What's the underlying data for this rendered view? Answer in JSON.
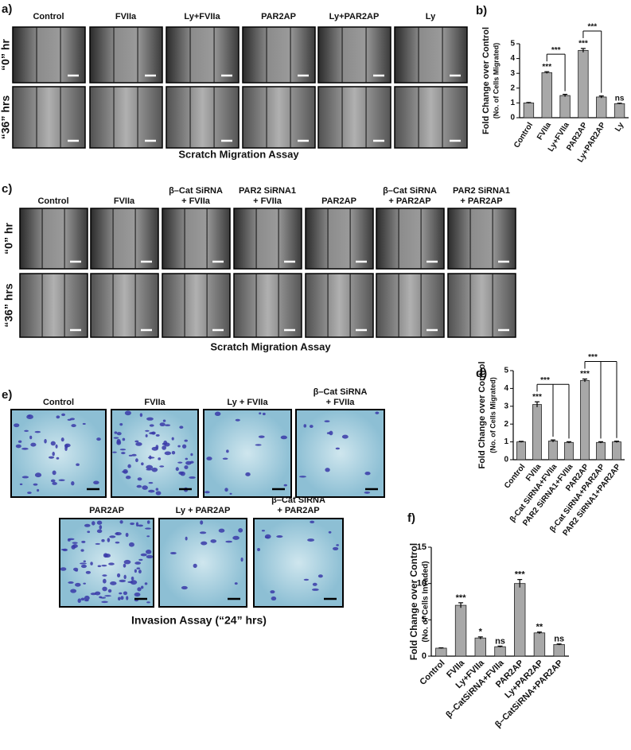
{
  "figure": {
    "panel_a": {
      "label": "a)",
      "columns": [
        "Control",
        "FVIIa",
        "Ly+FVIIa",
        "PAR2AP",
        "Ly+PAR2AP",
        "Ly"
      ],
      "rows": [
        "“0” hr",
        "“36” hrs"
      ],
      "caption": "Scratch Migration Assay"
    },
    "panel_c": {
      "label": "c)",
      "columns": [
        [
          "Control"
        ],
        [
          "FVIIa"
        ],
        [
          "β–Cat SiRNA",
          "+ FVIIa"
        ],
        [
          "PAR2 SiRNA1",
          "+ FVIIa"
        ],
        [
          "PAR2AP"
        ],
        [
          "β–Cat SiRNA",
          "+ PAR2AP"
        ],
        [
          "PAR2 SiRNA1",
          "+ PAR2AP"
        ]
      ],
      "rows": [
        "“0” hr",
        "“36” hrs"
      ],
      "caption": "Scratch Migration Assay"
    },
    "panel_e": {
      "label": "e)",
      "top": [
        [
          "Control"
        ],
        [
          "FVIIa"
        ],
        [
          "Ly + FVIIa"
        ],
        [
          "β–Cat SiRNA",
          "+ FVIIa"
        ]
      ],
      "bottom": [
        [
          "PAR2AP"
        ],
        [
          "Ly + PAR2AP"
        ],
        [
          "β–Cat SiRNA",
          "+ PAR2AP"
        ]
      ],
      "caption": "Invasion Assay (“24” hrs)"
    }
  },
  "chart_data": [
    {
      "type": "bar",
      "label": "b)",
      "ylabel": "Fold Change over Control",
      "ysublabel": "(No. of Cells Migrated)",
      "categories": [
        "Control",
        "FVIIa",
        "Ly+FVIIa",
        "PAR2AP",
        "Ly+PAR2AP",
        "Ly"
      ],
      "values": [
        1.0,
        3.05,
        1.5,
        4.55,
        1.4,
        0.95
      ],
      "errors": [
        0.03,
        0.06,
        0.08,
        0.13,
        0.07,
        0.03
      ],
      "annotations": [
        null,
        "***",
        null,
        "***",
        null,
        "ns"
      ],
      "comparisons": [
        {
          "label": "***",
          "from": 1,
          "to": [
            2
          ]
        },
        {
          "label": "***",
          "from": 3,
          "to": [
            4
          ]
        }
      ],
      "color": "#a8a8a8",
      "ylim": [
        0,
        5
      ],
      "yticks": [
        0,
        1,
        2,
        3,
        4,
        5
      ]
    },
    {
      "type": "bar",
      "label": "d)",
      "ylabel": "Fold Change over Control",
      "ysublabel": "(No. of Cells Migrated)",
      "categories": [
        "Control",
        "FVIIa",
        "β-Cat SiRNA+FVIIa",
        "PAR2 SiRNA1+FVIIa",
        "PAR2AP",
        "β-Cat SiRNA+PAR2AP",
        "PAR2 SiRNA1+PAR2AP"
      ],
      "values": [
        1.0,
        3.1,
        1.05,
        0.97,
        4.45,
        0.97,
        1.0
      ],
      "errors": [
        0.03,
        0.15,
        0.06,
        0.04,
        0.08,
        0.04,
        0.04
      ],
      "annotations": [
        null,
        "***",
        null,
        null,
        "***",
        null,
        null
      ],
      "comparisons": [
        {
          "label": "***",
          "from": 1,
          "to": [
            2,
            3
          ]
        },
        {
          "label": "***",
          "from": 4,
          "to": [
            5,
            6
          ]
        }
      ],
      "color": "#a8a8a8",
      "ylim": [
        0,
        5
      ],
      "yticks": [
        0,
        1,
        2,
        3,
        4,
        5
      ]
    },
    {
      "type": "bar",
      "label": "f)",
      "ylabel": "Fold Change over Control",
      "ysublabel": "(No. of Cells Invaded)",
      "categories": [
        "Control",
        "FVIIa",
        "Ly+FVIIa",
        "β–CatSiRNA+FVIIa",
        "PAR2AP",
        "Ly+PAR2AP",
        "β–CatSiRNA+PAR2AP"
      ],
      "values": [
        1.1,
        7.0,
        2.5,
        1.3,
        10.0,
        3.2,
        1.6
      ],
      "errors": [
        0.05,
        0.35,
        0.15,
        0.08,
        0.55,
        0.12,
        0.08
      ],
      "annotations": [
        null,
        "***",
        "*",
        "ns",
        "***",
        "**",
        "ns"
      ],
      "comparisons": [],
      "color": "#a8a8a8",
      "ylim": [
        0,
        15
      ],
      "yticks": [
        0,
        5,
        10,
        15
      ]
    }
  ]
}
